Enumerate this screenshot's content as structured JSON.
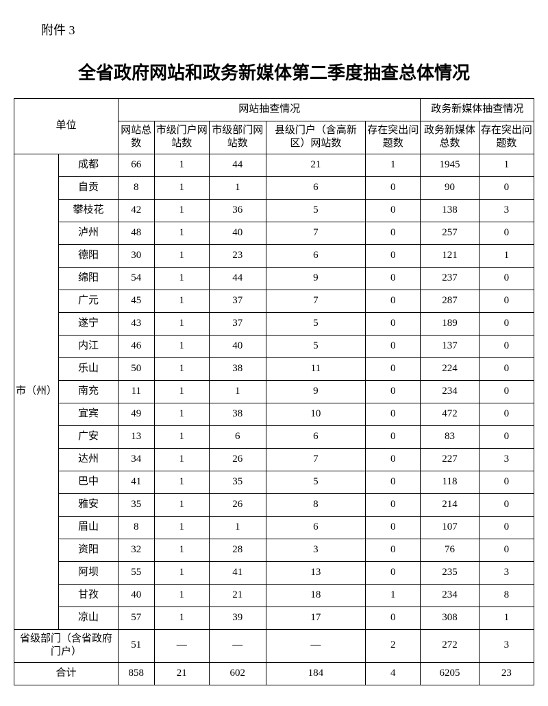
{
  "attachment_label": "附件 3",
  "title": "全省政府网站和政务新媒体第二季度抽查总体情况",
  "headers": {
    "unit": "单位",
    "website_group": "网站抽查情况",
    "newmedia_group": "政务新媒体抽查情况",
    "col1": "网站总数",
    "col2": "市级门户网站数",
    "col3": "市级部门网站数",
    "col4": "县级门户（含高新区）网站数",
    "col5": "存在突出问题数",
    "col6": "政务新媒体总数",
    "col7": "存在突出问题数"
  },
  "group_label": "市（州）",
  "rows": [
    {
      "name": "成都",
      "c1": "66",
      "c2": "1",
      "c3": "44",
      "c4": "21",
      "c5": "1",
      "c6": "1945",
      "c7": "1"
    },
    {
      "name": "自贡",
      "c1": "8",
      "c2": "1",
      "c3": "1",
      "c4": "6",
      "c5": "0",
      "c6": "90",
      "c7": "0"
    },
    {
      "name": "攀枝花",
      "c1": "42",
      "c2": "1",
      "c3": "36",
      "c4": "5",
      "c5": "0",
      "c6": "138",
      "c7": "3"
    },
    {
      "name": "泸州",
      "c1": "48",
      "c2": "1",
      "c3": "40",
      "c4": "7",
      "c5": "0",
      "c6": "257",
      "c7": "0"
    },
    {
      "name": "德阳",
      "c1": "30",
      "c2": "1",
      "c3": "23",
      "c4": "6",
      "c5": "0",
      "c6": "121",
      "c7": "1"
    },
    {
      "name": "绵阳",
      "c1": "54",
      "c2": "1",
      "c3": "44",
      "c4": "9",
      "c5": "0",
      "c6": "237",
      "c7": "0"
    },
    {
      "name": "广元",
      "c1": "45",
      "c2": "1",
      "c3": "37",
      "c4": "7",
      "c5": "0",
      "c6": "287",
      "c7": "0"
    },
    {
      "name": "遂宁",
      "c1": "43",
      "c2": "1",
      "c3": "37",
      "c4": "5",
      "c5": "0",
      "c6": "189",
      "c7": "0"
    },
    {
      "name": "内江",
      "c1": "46",
      "c2": "1",
      "c3": "40",
      "c4": "5",
      "c5": "0",
      "c6": "137",
      "c7": "0"
    },
    {
      "name": "乐山",
      "c1": "50",
      "c2": "1",
      "c3": "38",
      "c4": "11",
      "c5": "0",
      "c6": "224",
      "c7": "0"
    },
    {
      "name": "南充",
      "c1": "11",
      "c2": "1",
      "c3": "1",
      "c4": "9",
      "c5": "0",
      "c6": "234",
      "c7": "0"
    },
    {
      "name": "宜宾",
      "c1": "49",
      "c2": "1",
      "c3": "38",
      "c4": "10",
      "c5": "0",
      "c6": "472",
      "c7": "0"
    },
    {
      "name": "广安",
      "c1": "13",
      "c2": "1",
      "c3": "6",
      "c4": "6",
      "c5": "0",
      "c6": "83",
      "c7": "0"
    },
    {
      "name": "达州",
      "c1": "34",
      "c2": "1",
      "c3": "26",
      "c4": "7",
      "c5": "0",
      "c6": "227",
      "c7": "3"
    },
    {
      "name": "巴中",
      "c1": "41",
      "c2": "1",
      "c3": "35",
      "c4": "5",
      "c5": "0",
      "c6": "118",
      "c7": "0"
    },
    {
      "name": "雅安",
      "c1": "35",
      "c2": "1",
      "c3": "26",
      "c4": "8",
      "c5": "0",
      "c6": "214",
      "c7": "0"
    },
    {
      "name": "眉山",
      "c1": "8",
      "c2": "1",
      "c3": "1",
      "c4": "6",
      "c5": "0",
      "c6": "107",
      "c7": "0"
    },
    {
      "name": "资阳",
      "c1": "32",
      "c2": "1",
      "c3": "28",
      "c4": "3",
      "c5": "0",
      "c6": "76",
      "c7": "0"
    },
    {
      "name": "阿坝",
      "c1": "55",
      "c2": "1",
      "c3": "41",
      "c4": "13",
      "c5": "0",
      "c6": "235",
      "c7": "3"
    },
    {
      "name": "甘孜",
      "c1": "40",
      "c2": "1",
      "c3": "21",
      "c4": "18",
      "c5": "1",
      "c6": "234",
      "c7": "8"
    },
    {
      "name": "凉山",
      "c1": "57",
      "c2": "1",
      "c3": "39",
      "c4": "17",
      "c5": "0",
      "c6": "308",
      "c7": "1"
    }
  ],
  "province_row": {
    "name": "省级部门（含省政府门户）",
    "c1": "51",
    "c2": "—",
    "c3": "—",
    "c4": "—",
    "c5": "2",
    "c6": "272",
    "c7": "3"
  },
  "total_row": {
    "name": "合计",
    "c1": "858",
    "c2": "21",
    "c3": "602",
    "c4": "184",
    "c5": "4",
    "c6": "6205",
    "c7": "23"
  }
}
